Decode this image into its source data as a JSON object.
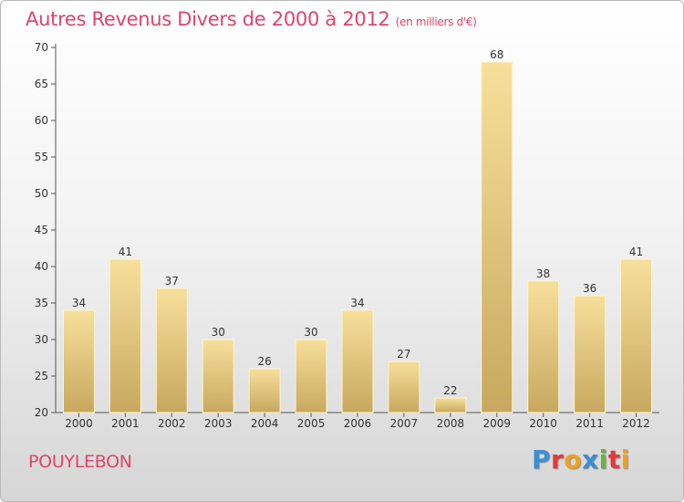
{
  "header": {
    "title": "Autres Revenus Divers de 2000 à 2012",
    "unit": "(en milliers d'€)"
  },
  "footer": {
    "commune": "POUYLEBON",
    "logo": "Proxiti",
    "logo_colors": [
      "#3a8fd4",
      "#e23a3a",
      "#f0a020",
      "#3a8fd4",
      "#6cb33f",
      "#e23a3a",
      "#f0a020"
    ]
  },
  "chart_data": {
    "type": "bar",
    "categories": [
      "2000",
      "2001",
      "2002",
      "2003",
      "2004",
      "2005",
      "2006",
      "2007",
      "2008",
      "2009",
      "2010",
      "2011",
      "2012"
    ],
    "values": [
      34,
      41,
      37,
      30,
      26,
      30,
      34,
      27,
      22,
      68,
      38,
      36,
      41
    ],
    "ylim": [
      20,
      70
    ],
    "yticks": [
      20,
      25,
      30,
      35,
      40,
      45,
      50,
      55,
      60,
      65,
      70
    ],
    "grid": false,
    "bar_color_light": "#f7e09c",
    "bar_color_dark": "#c8a85f"
  }
}
